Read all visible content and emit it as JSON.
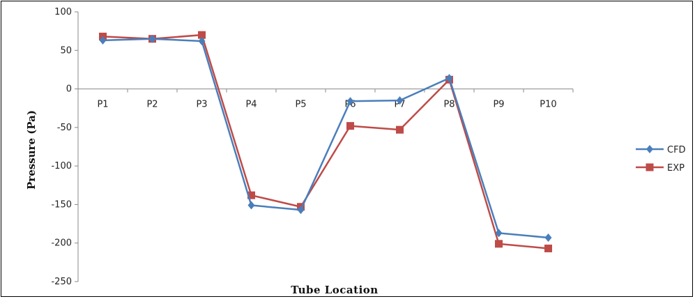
{
  "chart_data": {
    "type": "line",
    "title": "",
    "xlabel": "Tube Location",
    "ylabel": "Pressure (Pa)",
    "categories": [
      "P1",
      "P2",
      "P3",
      "P4",
      "P5",
      "P6",
      "P7",
      "P8",
      "P9",
      "P10"
    ],
    "ylim": [
      -250,
      100
    ],
    "yticks": [
      "100",
      "50",
      "0",
      "-50",
      "-100",
      "-150",
      "-200",
      "-250"
    ],
    "legend_position": "right",
    "series": [
      {
        "name": "CFD",
        "color": "#4a7ebb",
        "marker": "diamond",
        "values": [
          63,
          65,
          62,
          -151,
          -157,
          -16,
          -15,
          14,
          -187,
          -193
        ]
      },
      {
        "name": "EXP",
        "color": "#be4b48",
        "marker": "square",
        "values": [
          68,
          65,
          70,
          -138,
          -153,
          -48,
          -53,
          12,
          -201,
          -207
        ]
      }
    ]
  }
}
